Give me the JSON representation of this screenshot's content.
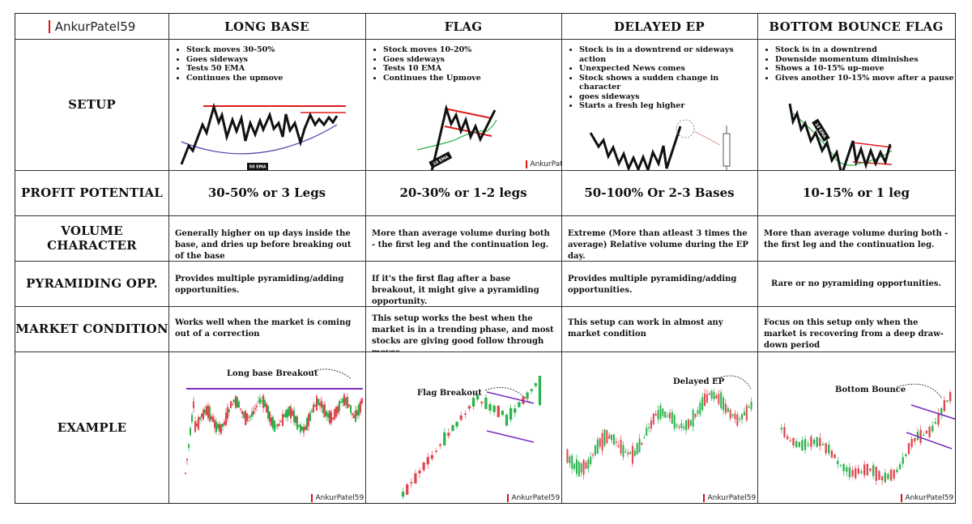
{
  "brand": {
    "name": "AnkurPatel59"
  },
  "columns": [
    "LONG BASE",
    "FLAG",
    "DELAYED EP",
    "BOTTOM BOUNCE FLAG"
  ],
  "rows": {
    "setup": "SETUP",
    "profit": "PROFIT POTENTIAL",
    "volume": "VOLUME CHARACTER",
    "pyramiding": "PYRAMIDING OPP.",
    "market": "MARKET CONDITION",
    "example": "EXAMPLE"
  },
  "setup": {
    "long_base": [
      "Stock moves 30-50%",
      "Goes sideways",
      "Tests 50 EMA",
      "Continues the upmove"
    ],
    "flag": [
      "Stock moves 10-20%",
      "Goes sideways",
      "Tests 10 EMA",
      "Continues the Upmove"
    ],
    "delayed_ep": [
      "Stock is in a downtrend or sideways action",
      "Unexpected News comes",
      "Stock shows a sudden change in character",
      "goes sideways",
      "Starts a fresh leg higher"
    ],
    "bottom_bounce": [
      "Stock is in a downtrend",
      "Downside momentum diminishes",
      "Shows a 10-15% up-move",
      "Gives another 10-15% move after a pause"
    ]
  },
  "chart_labels": {
    "ema50": "50 EMA",
    "ema10": "10 EMA"
  },
  "profit": {
    "long_base": "30-50% or 3 Legs",
    "flag": "20-30% or 1-2 legs",
    "delayed_ep": "50-100% Or 2-3 Bases",
    "bottom_bounce": "10-15% or 1 leg"
  },
  "volume": {
    "long_base": "Generally higher on up days inside the base, and dries up before breaking out of the base",
    "flag": "More than average volume during both - the first leg and the continuation leg.",
    "delayed_ep": "Extreme (More than atleast 3 times the average) Relative volume during the EP day.",
    "bottom_bounce": "More than average volume during both - the first leg and the continuation leg."
  },
  "pyramiding": {
    "long_base": "Provides multiple pyramiding/adding opportunities.",
    "flag": "If it's the first flag after a base breakout, it might give a pyramiding opportunity.",
    "delayed_ep": "Provides multiple pyramiding/adding opportunities.",
    "bottom_bounce": "Rare or no pyramiding opportunities."
  },
  "market": {
    "long_base": "Works well when the market is coming out of a correction",
    "flag": "This setup works the best when the market is in a trending phase, and most stocks are giving good follow through moves",
    "delayed_ep": "This setup can work in almost any market condition",
    "bottom_bounce": "Focus on this setup only when the market is recovering from a deep draw-down period"
  },
  "example": {
    "long_base": "Long base Breakout",
    "flag": "Flag Breakout",
    "delayed_ep": "Delayed EP",
    "bottom_bounce": "Bottom Bounce"
  },
  "colors": {
    "resistance": "#e01b1b",
    "ema": "#5b3fb0",
    "green": "#2bb24c",
    "red": "#e0464f",
    "trendline": "#7b2fbf"
  }
}
